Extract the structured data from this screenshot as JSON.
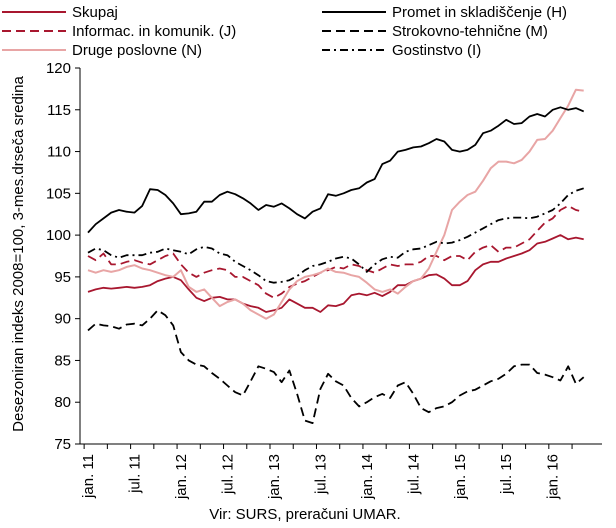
{
  "chart_data": {
    "type": "line",
    "ylabel": "Desezoniran indeks 2008=100, 3-mes.drseča sredina",
    "source": "Vir:  SURS, preračuni UMAR.",
    "ylim": [
      75,
      120
    ],
    "yticks": [
      75,
      80,
      85,
      90,
      95,
      100,
      105,
      110,
      115,
      120
    ],
    "x_start": "2011-01",
    "x_end": "2016-04",
    "x_tick_labels": [
      "jan. 11",
      "jul. 11",
      "jan. 12",
      "jul. 12",
      "jan. 13",
      "jul. 13",
      "jan. 14",
      "jul. 14",
      "jan. 15",
      "jul. 15",
      "jan. 16"
    ],
    "grid": false,
    "legend_placement": "top",
    "series": [
      {
        "name": "Skupaj",
        "color": "#a8172f",
        "dash": "solid",
        "values": [
          93.2,
          93.5,
          93.7,
          93.6,
          93.7,
          93.8,
          93.7,
          93.8,
          94.0,
          94.5,
          94.8,
          95.0,
          94.6,
          93.5,
          92.5,
          92.1,
          92.5,
          92.6,
          92.3,
          92.3,
          91.8,
          91.5,
          91.3,
          90.8,
          91.0,
          91.3,
          92.3,
          91.8,
          91.3,
          91.3,
          90.8,
          91.6,
          91.5,
          91.8,
          92.8,
          93.0,
          92.8,
          93.1,
          92.7,
          93.2,
          94.0,
          94.0,
          94.5,
          94.8,
          95.2,
          95.3,
          94.8,
          94.0,
          94.0,
          94.5,
          95.8,
          96.5,
          96.8,
          96.8,
          97.2,
          97.5,
          97.8,
          98.2,
          99.0,
          99.2,
          99.6,
          100.0,
          99.5,
          99.7,
          99.5
        ]
      },
      {
        "name": "Informac. in komunik. (J)",
        "color": "#a8172f",
        "dash": "dashed",
        "values": [
          97.5,
          97.0,
          97.8,
          96.5,
          96.5,
          96.8,
          97.0,
          96.7,
          96.5,
          97.0,
          97.5,
          97.8,
          96.5,
          95.5,
          95.0,
          95.5,
          95.8,
          96.0,
          95.8,
          95.0,
          95.0,
          94.5,
          94.0,
          93.0,
          92.5,
          93.0,
          93.8,
          94.2,
          94.5,
          95.0,
          95.5,
          95.8,
          96.2,
          96.0,
          96.5,
          96.3,
          95.8,
          95.5,
          96.0,
          96.5,
          96.3,
          96.5,
          96.5,
          96.8,
          97.5,
          97.5,
          97.0,
          97.5,
          97.5,
          97.0,
          98.0,
          98.5,
          98.8,
          98.0,
          98.5,
          98.5,
          99.0,
          99.5,
          100.5,
          101.5,
          102.0,
          103.0,
          103.5,
          103.0,
          102.8
        ]
      },
      {
        "name": "Druge poslovne (N)",
        "color": "#e8a5a5",
        "dash": "solid",
        "values": [
          95.8,
          95.5,
          95.8,
          95.6,
          95.8,
          96.2,
          96.4,
          96.0,
          95.8,
          95.5,
          95.2,
          95.0,
          95.8,
          93.8,
          93.2,
          93.5,
          92.5,
          91.5,
          92.0,
          92.3,
          91.8,
          91.0,
          90.5,
          90.0,
          90.5,
          92.0,
          93.5,
          94.5,
          95.0,
          95.2,
          95.5,
          96.0,
          95.6,
          95.5,
          95.2,
          95.0,
          94.3,
          93.5,
          93.2,
          93.5,
          93.0,
          93.8,
          94.5,
          94.8,
          96.0,
          98.0,
          100.0,
          103.0,
          104.0,
          104.8,
          105.2,
          106.5,
          108.0,
          108.8,
          108.8,
          108.6,
          109.0,
          110.0,
          111.4,
          111.5,
          112.5,
          114.0,
          115.5,
          117.4,
          117.3
        ]
      },
      {
        "name": "Promet in skladiščenje (H)",
        "color": "#000000",
        "dash": "solid",
        "values": [
          100.3,
          101.3,
          102.0,
          102.7,
          103.0,
          102.8,
          102.7,
          103.5,
          105.5,
          105.4,
          104.8,
          103.8,
          102.5,
          102.6,
          102.8,
          104.0,
          104.0,
          104.8,
          105.2,
          104.9,
          104.4,
          103.8,
          103.0,
          103.6,
          103.4,
          103.8,
          103.2,
          102.5,
          102.0,
          102.8,
          103.2,
          104.9,
          104.7,
          105.0,
          105.4,
          105.6,
          106.3,
          106.7,
          108.5,
          108.9,
          110.0,
          110.2,
          110.5,
          110.6,
          111.0,
          111.5,
          111.2,
          110.2,
          110.0,
          110.2,
          110.8,
          112.2,
          112.5,
          113.1,
          113.8,
          113.3,
          113.4,
          114.2,
          114.5,
          114.2,
          115.0,
          115.3,
          115.0,
          115.2,
          114.8
        ]
      },
      {
        "name": "Strokovno-tehnične (M)",
        "color": "#000000",
        "dash": "dashed",
        "values": [
          88.6,
          89.4,
          89.2,
          89.1,
          88.8,
          89.3,
          89.4,
          89.2,
          90.0,
          91.0,
          90.4,
          89.2,
          86.0,
          85.0,
          84.5,
          84.3,
          83.5,
          82.8,
          82.0,
          81.2,
          80.8,
          82.5,
          84.3,
          84.0,
          83.6,
          82.4,
          83.8,
          81.0,
          77.8,
          77.5,
          81.6,
          83.4,
          82.5,
          82.0,
          80.5,
          79.5,
          80.0,
          80.6,
          81.0,
          80.5,
          82.0,
          82.4,
          81.0,
          79.3,
          78.8,
          79.3,
          79.5,
          80.0,
          80.8,
          81.3,
          81.5,
          82.0,
          82.5,
          82.8,
          83.4,
          84.3,
          84.5,
          84.5,
          83.5,
          83.3,
          83.0,
          82.6,
          84.3,
          82.2,
          83.0
        ]
      },
      {
        "name": "Gostinstvo (I)",
        "color": "#000000",
        "dash": "dashdot",
        "values": [
          97.9,
          98.4,
          98.2,
          97.6,
          97.3,
          97.6,
          97.6,
          97.6,
          97.9,
          98.0,
          98.4,
          98.2,
          98.0,
          97.7,
          98.3,
          98.6,
          98.4,
          97.8,
          97.6,
          96.8,
          96.3,
          95.8,
          95.2,
          94.5,
          94.3,
          94.4,
          94.6,
          95.1,
          95.8,
          96.3,
          96.5,
          96.8,
          97.2,
          97.4,
          97.2,
          96.5,
          95.6,
          96.5,
          97.1,
          97.4,
          97.3,
          98.0,
          98.3,
          98.4,
          98.8,
          99.2,
          99.0,
          99.1,
          99.4,
          99.8,
          100.3,
          100.8,
          101.3,
          101.8,
          102.0,
          102.1,
          102.1,
          102.0,
          102.2,
          102.6,
          103.0,
          103.8,
          104.8,
          105.3,
          105.6
        ]
      }
    ]
  }
}
